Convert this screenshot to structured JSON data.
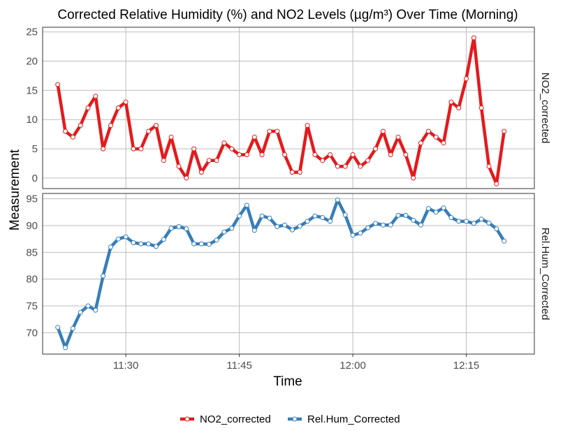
{
  "chart_data": {
    "type": "line",
    "title": "Corrected Relative Humidity (%) and NO2 Levels (µg/m³) Over Time (Morning)",
    "xlabel": "Time",
    "ylabel": "Measurement",
    "x_ticks": [
      "11:30",
      "11:45",
      "12:00",
      "12:15"
    ],
    "x_range": [
      "11:19",
      "12:24"
    ],
    "grid": true,
    "legend_position": "bottom",
    "panels": [
      {
        "strip_label": "NO2_corrected",
        "ylim": [
          -1.8,
          25.8
        ],
        "y_ticks": [
          0,
          5,
          10,
          15,
          20,
          25
        ]
      },
      {
        "strip_label": "Rel.Hum_Corrected",
        "ylim": [
          66,
          96
        ],
        "y_ticks": [
          70,
          75,
          80,
          85,
          90,
          95
        ]
      }
    ],
    "series": [
      {
        "name": "NO2_corrected",
        "color": "#e41a1c",
        "panel": 0,
        "x": [
          "11:21",
          "11:22",
          "11:23",
          "11:24",
          "11:25",
          "11:26",
          "11:27",
          "11:28",
          "11:29",
          "11:30",
          "11:31",
          "11:32",
          "11:33",
          "11:34",
          "11:35",
          "11:36",
          "11:37",
          "11:38",
          "11:39",
          "11:40",
          "11:41",
          "11:42",
          "11:43",
          "11:44",
          "11:45",
          "11:46",
          "11:47",
          "11:48",
          "11:49",
          "11:50",
          "11:51",
          "11:52",
          "11:53",
          "11:54",
          "11:55",
          "11:56",
          "11:57",
          "11:58",
          "11:59",
          "12:00",
          "12:01",
          "12:02",
          "12:03",
          "12:04",
          "12:05",
          "12:06",
          "12:07",
          "12:08",
          "12:09",
          "12:10",
          "12:11",
          "12:12",
          "12:13",
          "12:14",
          "12:15",
          "12:16",
          "12:17",
          "12:18",
          "12:19",
          "12:20"
        ],
        "values": [
          16,
          8,
          7,
          9,
          12,
          14,
          5,
          9,
          12,
          13,
          5,
          5,
          8,
          9,
          3,
          7,
          2,
          0,
          5,
          1,
          3,
          3,
          6,
          5,
          4,
          4,
          7,
          4,
          8,
          8,
          4,
          1,
          1,
          9,
          4,
          3,
          4,
          2,
          2,
          4,
          2,
          3,
          5,
          8,
          4,
          7,
          4,
          0,
          6,
          8,
          7,
          6,
          13,
          12,
          17,
          24,
          12,
          2,
          -1,
          8
        ]
      },
      {
        "name": "Rel.Hum_Corrected",
        "color": "#377eb8",
        "panel": 1,
        "x": [
          "11:21",
          "11:22",
          "11:23",
          "11:24",
          "11:25",
          "11:26",
          "11:27",
          "11:28",
          "11:29",
          "11:30",
          "11:31",
          "11:32",
          "11:33",
          "11:34",
          "11:35",
          "11:36",
          "11:37",
          "11:38",
          "11:39",
          "11:40",
          "11:41",
          "11:42",
          "11:43",
          "11:44",
          "11:45",
          "11:46",
          "11:47",
          "11:48",
          "11:49",
          "11:50",
          "11:51",
          "11:52",
          "11:53",
          "11:54",
          "11:55",
          "11:56",
          "11:57",
          "11:58",
          "11:59",
          "12:00",
          "12:01",
          "12:02",
          "12:03",
          "12:04",
          "12:05",
          "12:06",
          "12:07",
          "12:08",
          "12:09",
          "12:10",
          "12:11",
          "12:12",
          "12:13",
          "12:14",
          "12:15",
          "12:16",
          "12:17",
          "12:18",
          "12:19",
          "12:20"
        ],
        "values": [
          71.0,
          67.2,
          70.8,
          73.8,
          75.0,
          74.2,
          80.6,
          86.0,
          87.5,
          87.9,
          86.8,
          86.6,
          86.6,
          86.1,
          87.4,
          89.5,
          89.8,
          89.4,
          86.6,
          86.6,
          86.5,
          87.3,
          88.8,
          89.5,
          91.8,
          93.8,
          89.1,
          91.8,
          91.4,
          89.8,
          90.1,
          89.2,
          89.9,
          90.8,
          91.8,
          91.5,
          90.8,
          94.8,
          92.0,
          88.2,
          88.6,
          89.6,
          90.4,
          90.1,
          90.1,
          91.9,
          91.9,
          91.0,
          90.1,
          93.2,
          92.5,
          93.3,
          91.5,
          90.8,
          90.8,
          90.4,
          91.2,
          90.5,
          89.4,
          87.1
        ]
      }
    ]
  }
}
